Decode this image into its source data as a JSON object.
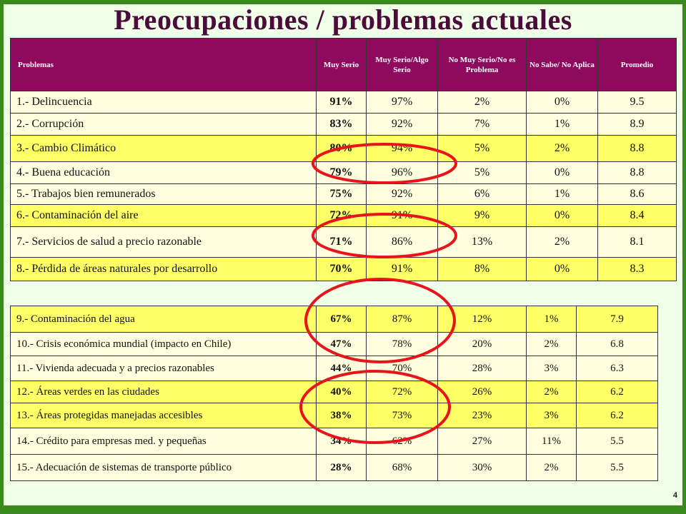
{
  "title": "Preocupaciones / problemas actuales",
  "page_number": "4",
  "headers": [
    "Problemas",
    "Muy Serio",
    "Muy Serio/Algo Serio",
    "No Muy Serio/No es Problema",
    "No Sabe/ No Aplica",
    "Promedio"
  ],
  "rows_top": [
    {
      "label": "1.- Delincuencia",
      "muy_serio": "91%",
      "muy_algo": "97%",
      "no_muy": "2%",
      "no_sabe": "0%",
      "promedio": "9.5"
    },
    {
      "label": "2.- Corrupción",
      "muy_serio": "83%",
      "muy_algo": "92%",
      "no_muy": "7%",
      "no_sabe": "1%",
      "promedio": "8.9"
    },
    {
      "label": "3.- Cambio Climático",
      "muy_serio": "80%",
      "muy_algo": "94%",
      "no_muy": "5%",
      "no_sabe": "2%",
      "promedio": "8.8"
    },
    {
      "label": "4.- Buena educación",
      "muy_serio": "79%",
      "muy_algo": "96%",
      "no_muy": "5%",
      "no_sabe": "0%",
      "promedio": "8.8"
    },
    {
      "label": "5.- Trabajos bien remunerados",
      "muy_serio": "75%",
      "muy_algo": "92%",
      "no_muy": "6%",
      "no_sabe": "1%",
      "promedio": "8.6"
    },
    {
      "label": "6.- Contaminación del aire",
      "muy_serio": "72%",
      "muy_algo": "91%",
      "no_muy": "9%",
      "no_sabe": "0%",
      "promedio": "8.4"
    },
    {
      "label": "7.- Servicios de salud a precio razonable",
      "muy_serio": "71%",
      "muy_algo": "86%",
      "no_muy": "13%",
      "no_sabe": "2%",
      "promedio": "8.1"
    },
    {
      "label": "8.- Pérdida de áreas naturales por desarrollo",
      "muy_serio": "70%",
      "muy_algo": "91%",
      "no_muy": "8%",
      "no_sabe": "0%",
      "promedio": "8.3"
    }
  ],
  "rows_bottom": [
    {
      "label": "9.- Contaminación del agua",
      "muy_serio": "67%",
      "muy_algo": "87%",
      "no_muy": "12%",
      "no_sabe": "1%",
      "promedio": "7.9"
    },
    {
      "label": "10.- Crisis económica mundial (impacto en Chile)",
      "muy_serio": "47%",
      "muy_algo": "78%",
      "no_muy": "20%",
      "no_sabe": "2%",
      "promedio": "6.8"
    },
    {
      "label": "11.- Vivienda adecuada y a precios razonables",
      "muy_serio": "44%",
      "muy_algo": "70%",
      "no_muy": "28%",
      "no_sabe": "3%",
      "promedio": "6.3"
    },
    {
      "label": "12.- Áreas verdes en las ciudades",
      "muy_serio": "40%",
      "muy_algo": "72%",
      "no_muy": "26%",
      "no_sabe": "2%",
      "promedio": "6.2"
    },
    {
      "label": "13.- Áreas protegidas manejadas  accesibles",
      "muy_serio": "38%",
      "muy_algo": "73%",
      "no_muy": "23%",
      "no_sabe": "3%",
      "promedio": "6.2"
    },
    {
      "label": "14.- Crédito para empresas med. y pequeñas",
      "muy_serio": "34%",
      "muy_algo": "62%",
      "no_muy": "27%",
      "no_sabe": "11%",
      "promedio": "5.5"
    },
    {
      "label": "15.- Adecuación de sistemas de transporte público",
      "muy_serio": "28%",
      "muy_algo": "68%",
      "no_muy": "30%",
      "no_sabe": "2%",
      "promedio": "5.5"
    }
  ],
  "colors": {
    "frame_green": "#3a8a1e",
    "header_purple": "#8e0a5f",
    "title_purple": "#4c0b3a",
    "highlight_yellow": "#ffff66",
    "row_cream": "#ffffe0",
    "circle_red": "#e8141b"
  }
}
